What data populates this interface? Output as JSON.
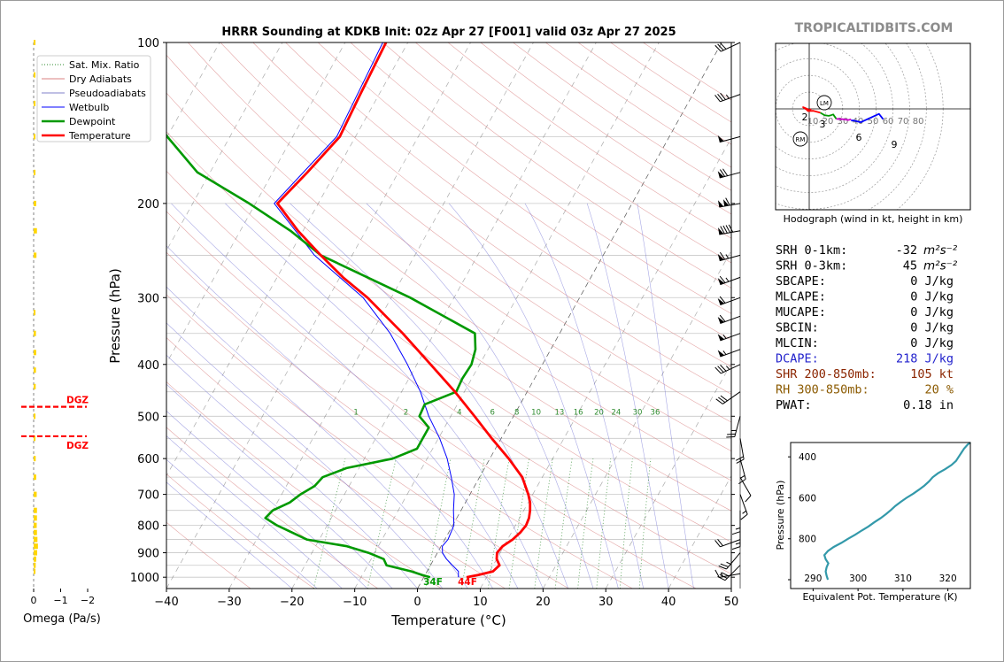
{
  "title": "HRRR Sounding at KDKB Init: 02z Apr 27 [F001] valid 03z Apr 27 2025",
  "watermark": "TROPICALTIDBITS.COM",
  "chart_data": [
    {
      "type": "line",
      "name": "skew-t",
      "xlabel": "Temperature (°C)",
      "ylabel": "Pressure (hPa)",
      "xlim": [
        -40,
        50
      ],
      "ylim": [
        1050,
        100
      ],
      "log_y": true,
      "skew": true,
      "grid": true,
      "x_ticks": [
        "−40",
        "−30",
        "−20",
        "−10",
        "0",
        "10",
        "20",
        "30",
        "40",
        "50"
      ],
      "y_ticks": [
        "100",
        "200",
        "300",
        "400",
        "500",
        "600",
        "700",
        "800",
        "900",
        "1000"
      ],
      "legend": {
        "placement": "top-left",
        "entries": [
          "Sat. Mix. Ratio",
          "Dry Adiabats",
          "Pseudoadiabats",
          "Wetbulb",
          "Dewpoint",
          "Temperature"
        ]
      },
      "mixing_ratio_labels": [
        "1",
        "2",
        "4",
        "6",
        "8",
        "10",
        "13",
        "16",
        "20",
        "24",
        "30",
        "36"
      ],
      "surface_labels": {
        "dewpoint": "34F",
        "temperature": "44F"
      },
      "series": [
        {
          "name": "Temperature",
          "color": "#ff0000",
          "p": [
            1000,
            990,
            975,
            950,
            925,
            900,
            875,
            850,
            825,
            800,
            775,
            750,
            725,
            700,
            650,
            600,
            550,
            500,
            450,
            400,
            350,
            300,
            275,
            250,
            225,
            200,
            175,
            150,
            125,
            100
          ],
          "t": [
            6.8,
            8.5,
            10.5,
            11.0,
            10.0,
            9.5,
            9.8,
            10.8,
            11.4,
            11.7,
            11.5,
            11.0,
            10.3,
            9.3,
            6.8,
            3.0,
            -1.5,
            -6.2,
            -11.5,
            -17.8,
            -25.0,
            -33.8,
            -39.5,
            -45.0,
            -50.8,
            -56.5,
            -54.5,
            -52.5,
            -53.0,
            -53.5
          ]
        },
        {
          "name": "Dewpoint",
          "color": "#009900",
          "p": [
            1000,
            990,
            975,
            950,
            925,
            900,
            875,
            850,
            800,
            775,
            750,
            725,
            700,
            675,
            650,
            625,
            600,
            575,
            550,
            525,
            500,
            475,
            450,
            425,
            400,
            375,
            350,
            300,
            250,
            225,
            200,
            175,
            150,
            125,
            100
          ],
          "t": [
            1.0,
            -0.5,
            -2.5,
            -7.0,
            -8.0,
            -11.0,
            -15.0,
            -22.0,
            -28.0,
            -30.5,
            -30.0,
            -28.0,
            -27.0,
            -25.5,
            -25.0,
            -22.0,
            -15.5,
            -12.5,
            -12.5,
            -12.5,
            -15.0,
            -15.2,
            -11.3,
            -11.5,
            -11.3,
            -12.0,
            -13.5,
            -27.0,
            -45.0,
            -52.0,
            -61.0,
            -72.0,
            -80.0,
            -88.0,
            -93.0
          ]
        },
        {
          "name": "Wetbulb",
          "color": "#0000ff",
          "p": [
            1000,
            975,
            950,
            925,
            900,
            875,
            850,
            800,
            750,
            700,
            650,
            600,
            550,
            500,
            450,
            400,
            350,
            300,
            250,
            200,
            150,
            100
          ],
          "t": [
            5.5,
            5.0,
            3.5,
            2.0,
            0.8,
            0.2,
            0.5,
            0.2,
            -1.2,
            -2.5,
            -4.5,
            -6.8,
            -9.8,
            -13.5,
            -17.0,
            -21.5,
            -27.0,
            -34.5,
            -46.0,
            -57.0,
            -53.0,
            -54.0
          ]
        }
      ]
    },
    {
      "type": "bar",
      "name": "omega",
      "xlabel": "Omega (Pa/s)",
      "x_ticks": [
        "0",
        "−1",
        "−2"
      ],
      "dgz_label": "DGZ",
      "dgz_pressures": [
        480,
        545
      ],
      "p": [
        100,
        115,
        130,
        150,
        175,
        200,
        225,
        250,
        320,
        350,
        380,
        410,
        440,
        500,
        550,
        600,
        650,
        700,
        750,
        775,
        800,
        825,
        850,
        875,
        900,
        925,
        950,
        975
      ],
      "values": [
        -0.02,
        -0.02,
        -0.02,
        -0.02,
        -0.02,
        -0.05,
        -0.08,
        -0.06,
        -0.02,
        -0.04,
        -0.05,
        -0.04,
        -0.03,
        -0.02,
        -0.02,
        -0.03,
        -0.05,
        -0.07,
        -0.08,
        -0.08,
        -0.07,
        -0.08,
        -0.1,
        -0.12,
        -0.09,
        -0.05,
        -0.03,
        -0.02
      ]
    },
    {
      "type": "line",
      "name": "hodograph",
      "xlabel": "Hodograph (wind in kt, height in km)",
      "ring_labels": [
        "10",
        "20",
        "30",
        "40",
        "50",
        "60",
        "70",
        "80"
      ],
      "height_labels": [
        "2",
        "3",
        "6",
        "9"
      ],
      "markers": [
        "LM",
        "RM"
      ],
      "segments": [
        {
          "color": "#ff0000",
          "u": [
            -0.3,
            -2.2,
            -0.5,
            0.5,
            -0.5,
            1.5,
            4.0
          ],
          "v": [
            -0.2,
            0.6,
            -0.6,
            -0.2,
            -0.8,
            -0.7,
            -1.4
          ]
        },
        {
          "color": "#009900",
          "u": [
            4.0,
            5.5,
            7.0,
            7.8,
            8.6,
            9.7
          ],
          "v": [
            -1.4,
            -2.3,
            -2.5,
            -2.3,
            -2.0,
            -3.6
          ]
        },
        {
          "color": "#cc00cc",
          "u": [
            9.7,
            12.0,
            14.0,
            15.0
          ],
          "v": [
            -3.6,
            -3.7,
            -4.0,
            -3.7
          ]
        },
        {
          "color": "#0000ff",
          "u": [
            15.0,
            16.0,
            18.5,
            25.0,
            26.5
          ],
          "v": [
            -4.2,
            -4.2,
            -4.8,
            -1.8,
            -3.7
          ]
        }
      ]
    },
    {
      "type": "table",
      "name": "parameters",
      "rows": [
        {
          "label": "SRH 0-1km:",
          "value": "-32",
          "unit": "m²s⁻²",
          "color": "#000000"
        },
        {
          "label": "SRH 0-3km:",
          "value": "45",
          "unit": "m²s⁻²",
          "color": "#000000"
        },
        {
          "label": "SBCAPE:",
          "value": "0 J/kg",
          "unit": "",
          "color": "#000000"
        },
        {
          "label": "MLCAPE:",
          "value": "0 J/kg",
          "unit": "",
          "color": "#000000"
        },
        {
          "label": "MUCAPE:",
          "value": "0 J/kg",
          "unit": "",
          "color": "#000000"
        },
        {
          "label": "SBCIN:",
          "value": "0 J/kg",
          "unit": "",
          "color": "#000000"
        },
        {
          "label": "MLCIN:",
          "value": "0 J/kg",
          "unit": "",
          "color": "#000000"
        },
        {
          "label": "DCAPE:",
          "value": "218 J/kg",
          "unit": "",
          "color": "#2222cc"
        },
        {
          "label": "SHR 200-850mb:",
          "value": "105 kt",
          "unit": "",
          "color": "#8b2500"
        },
        {
          "label": "RH 300-850mb:",
          "value": "20 %",
          "unit": "",
          "color": "#8b5a00"
        },
        {
          "label": "PWAT:",
          "value": "0.18 in",
          "unit": "",
          "color": "#000000"
        }
      ]
    },
    {
      "type": "line",
      "name": "theta-e",
      "xlabel": "Equivalent Pot. Temperature (K)",
      "ylabel": "Pressure (hPa)",
      "xlim": [
        285,
        325
      ],
      "ylim": [
        1000,
        330
      ],
      "x_ticks": [
        "290",
        "300",
        "310",
        "320"
      ],
      "y_ticks": [
        "400",
        "600",
        "800"
      ],
      "color": "#3399aa",
      "p": [
        1000,
        980,
        960,
        940,
        920,
        900,
        880,
        860,
        840,
        820,
        800,
        780,
        760,
        740,
        720,
        700,
        680,
        660,
        640,
        620,
        600,
        580,
        560,
        540,
        520,
        500,
        480,
        460,
        440,
        420,
        400,
        380,
        360,
        340,
        330
      ],
      "theta_e": [
        293.3,
        293.0,
        292.8,
        293.0,
        293.4,
        292.8,
        292.5,
        293.3,
        294.6,
        296.3,
        297.8,
        299.4,
        300.8,
        302.3,
        303.6,
        305.0,
        306.2,
        307.3,
        308.3,
        309.5,
        310.8,
        312.3,
        313.6,
        314.8,
        315.8,
        316.6,
        317.8,
        319.4,
        320.8,
        321.8,
        322.4,
        323.0,
        323.6,
        324.4,
        325.0
      ]
    }
  ],
  "wind_barbs": [
    {
      "p": 985,
      "spd": 15,
      "dir": 260
    },
    {
      "p": 950,
      "spd": 30,
      "dir": 225
    },
    {
      "p": 900,
      "spd": 25,
      "dir": 220
    },
    {
      "p": 850,
      "spd": 20,
      "dir": 250
    },
    {
      "p": 800,
      "spd": 15,
      "dir": 180
    },
    {
      "p": 750,
      "spd": 15,
      "dir": 180
    },
    {
      "p": 700,
      "spd": 15,
      "dir": 160
    },
    {
      "p": 650,
      "spd": 10,
      "dir": 150
    },
    {
      "p": 600,
      "spd": 15,
      "dir": 165
    },
    {
      "p": 550,
      "spd": 20,
      "dir": 170
    },
    {
      "p": 500,
      "spd": 25,
      "dir": 195
    },
    {
      "p": 450,
      "spd": 30,
      "dir": 235
    },
    {
      "p": 400,
      "spd": 35,
      "dir": 245
    },
    {
      "p": 375,
      "spd": 55,
      "dir": 250
    },
    {
      "p": 350,
      "spd": 55,
      "dir": 250
    },
    {
      "p": 325,
      "spd": 60,
      "dir": 250
    },
    {
      "p": 300,
      "spd": 60,
      "dir": 250
    },
    {
      "p": 275,
      "spd": 65,
      "dir": 250
    },
    {
      "p": 250,
      "spd": 65,
      "dir": 255
    },
    {
      "p": 225,
      "spd": 90,
      "dir": 260
    },
    {
      "p": 200,
      "spd": 110,
      "dir": 260
    },
    {
      "p": 175,
      "spd": 70,
      "dir": 255
    },
    {
      "p": 150,
      "spd": 50,
      "dir": 255
    },
    {
      "p": 125,
      "spd": 35,
      "dir": 250
    },
    {
      "p": 100,
      "spd": 30,
      "dir": 245
    }
  ]
}
